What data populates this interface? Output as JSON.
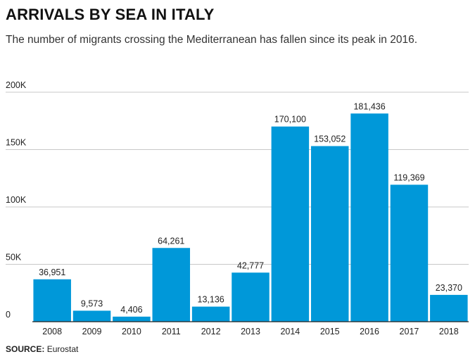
{
  "header": {
    "title": "ARRIVALS BY SEA IN ITALY",
    "subtitle": "The number of migrants crossing the Mediterranean has fallen since its peak in 2016."
  },
  "footer": {
    "source_label": "SOURCE:",
    "source_value": "Eurostat"
  },
  "colors": {
    "bar": "#0098d9",
    "grid": "#c8c8c8",
    "axis": "#222222",
    "text": "#222222"
  },
  "chart_data": {
    "type": "bar",
    "title": "ARRIVALS BY SEA IN ITALY",
    "subtitle": "The number of migrants crossing the Mediterranean has fallen since its peak in 2016.",
    "xlabel": "",
    "ylabel": "",
    "categories": [
      "2008",
      "2009",
      "2010",
      "2011",
      "2012",
      "2013",
      "2014",
      "2015",
      "2016",
      "2017",
      "2018"
    ],
    "values": [
      36951,
      9573,
      4406,
      64261,
      13136,
      42777,
      170100,
      153052,
      181436,
      119369,
      23370
    ],
    "data_labels": [
      "36,951",
      "9,573",
      "4,406",
      "64,261",
      "13,136",
      "42,777",
      "170,100",
      "153,052",
      "181,436",
      "119,369",
      "23,370"
    ],
    "ylim": [
      0,
      200000
    ],
    "yticks": [
      0,
      50000,
      100000,
      150000,
      200000
    ],
    "ytick_labels": [
      "0",
      "50K",
      "100K",
      "150K",
      "200K"
    ],
    "grid": true,
    "legend": "none"
  }
}
